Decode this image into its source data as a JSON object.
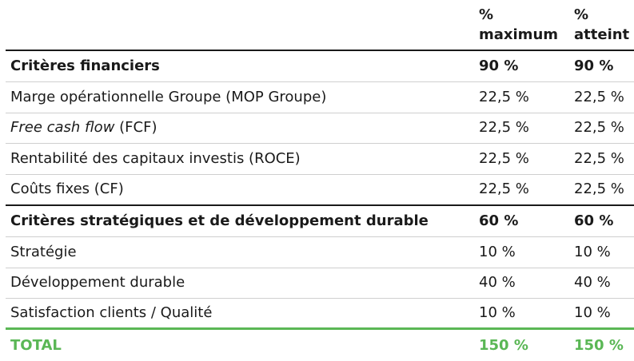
{
  "header": {
    "col1": [
      "%",
      "maximum"
    ],
    "col2": [
      "%",
      "atteint"
    ]
  },
  "rows": [
    {
      "label_italic": "",
      "label": "Critères financiers",
      "max": "90 %",
      "atteint": "90 %"
    },
    {
      "label_italic": "",
      "label": "Marge opérationnelle Groupe (MOP Groupe)",
      "max": "22,5 %",
      "atteint": "22,5 %"
    },
    {
      "label_italic": "Free cash flow",
      "label": " (FCF)",
      "max": "22,5 %",
      "atteint": "22,5 %"
    },
    {
      "label_italic": "",
      "label": "Rentabilité des capitaux investis (ROCE)",
      "max": "22,5 %",
      "atteint": "22,5 %"
    },
    {
      "label_italic": "",
      "label": "Coûts fixes (CF)",
      "max": "22,5 %",
      "atteint": "22,5 %"
    },
    {
      "label_italic": "",
      "label": "Critères stratégiques et de développement durable",
      "max": "60 %",
      "atteint": "60 %"
    },
    {
      "label_italic": "",
      "label": "Stratégie",
      "max": "10 %",
      "atteint": "10 %"
    },
    {
      "label_italic": "",
      "label": "Développement durable",
      "max": "40 %",
      "atteint": "40 %"
    },
    {
      "label_italic": "",
      "label": "Satisfaction clients / Qualité",
      "max": "10 %",
      "atteint": "10 %"
    }
  ],
  "total": {
    "label": "TOTAL",
    "max": "150 %",
    "atteint": "150 %"
  },
  "colors": {
    "accent": "#5ab755",
    "rule_dark": "#1a1a1a",
    "rule_light": "#cfcfcf"
  }
}
